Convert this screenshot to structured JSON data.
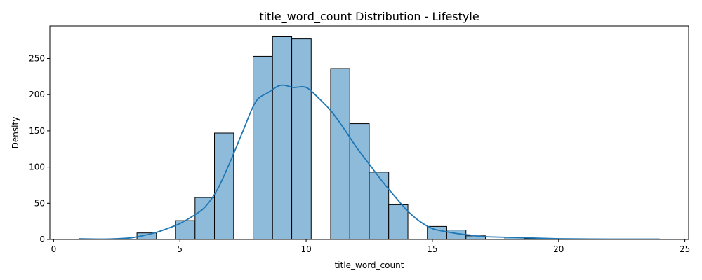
{
  "chart_data": {
    "type": "bar",
    "title": "title_word_count Distribution - Lifestyle",
    "xlabel": "title_word_count",
    "ylabel": "Density",
    "xlim": [
      -0.15,
      25.15
    ],
    "ylim": [
      0,
      295
    ],
    "xticks": [
      0,
      5,
      10,
      15,
      20,
      25
    ],
    "yticks": [
      0,
      50,
      100,
      150,
      200,
      250
    ],
    "bar_color": "#8fbbdb",
    "line_color": "#1f77b4",
    "bins": [
      {
        "x0": 1.0,
        "x1": 1.77,
        "value": 0
      },
      {
        "x0": 1.77,
        "x1": 2.53,
        "value": 0
      },
      {
        "x0": 2.53,
        "x1": 3.3,
        "value": 0
      },
      {
        "x0": 3.3,
        "x1": 4.07,
        "value": 9
      },
      {
        "x0": 4.07,
        "x1": 4.83,
        "value": 0
      },
      {
        "x0": 4.83,
        "x1": 5.6,
        "value": 26
      },
      {
        "x0": 5.6,
        "x1": 6.37,
        "value": 58
      },
      {
        "x0": 6.37,
        "x1": 7.13,
        "value": 147
      },
      {
        "x0": 7.13,
        "x1": 7.9,
        "value": 0
      },
      {
        "x0": 7.9,
        "x1": 8.67,
        "value": 253
      },
      {
        "x0": 8.67,
        "x1": 9.43,
        "value": 280
      },
      {
        "x0": 9.43,
        "x1": 10.2,
        "value": 277
      },
      {
        "x0": 10.2,
        "x1": 10.97,
        "value": 0
      },
      {
        "x0": 10.97,
        "x1": 11.73,
        "value": 236
      },
      {
        "x0": 11.73,
        "x1": 12.5,
        "value": 160
      },
      {
        "x0": 12.5,
        "x1": 13.27,
        "value": 93
      },
      {
        "x0": 13.27,
        "x1": 14.03,
        "value": 48
      },
      {
        "x0": 14.03,
        "x1": 14.8,
        "value": 0
      },
      {
        "x0": 14.8,
        "x1": 15.57,
        "value": 18
      },
      {
        "x0": 15.57,
        "x1": 16.33,
        "value": 13
      },
      {
        "x0": 16.33,
        "x1": 17.1,
        "value": 5
      },
      {
        "x0": 17.1,
        "x1": 17.87,
        "value": 0
      },
      {
        "x0": 17.87,
        "x1": 18.63,
        "value": 3
      },
      {
        "x0": 18.63,
        "x1": 19.4,
        "value": 1
      },
      {
        "x0": 19.4,
        "x1": 20.17,
        "value": 0
      },
      {
        "x0": 20.17,
        "x1": 20.93,
        "value": 0
      },
      {
        "x0": 20.93,
        "x1": 21.7,
        "value": 0
      },
      {
        "x0": 21.7,
        "x1": 22.47,
        "value": 0
      },
      {
        "x0": 22.47,
        "x1": 23.23,
        "value": 0
      },
      {
        "x0": 23.23,
        "x1": 24.0,
        "value": 0
      }
    ],
    "kde": {
      "x": [
        1,
        2,
        3,
        3.5,
        4,
        4.5,
        5,
        5.5,
        6,
        6.5,
        7,
        7.5,
        8,
        8.5,
        9,
        9.5,
        10,
        10.5,
        11,
        11.5,
        12,
        12.5,
        13,
        13.5,
        14,
        14.5,
        15,
        15.5,
        16,
        16.5,
        17,
        18,
        19,
        20,
        22,
        24
      ],
      "y": [
        1,
        0.5,
        2,
        5,
        9,
        15,
        22,
        32,
        45,
        70,
        108,
        150,
        190,
        203,
        213,
        210,
        210,
        195,
        177,
        153,
        127,
        104,
        81,
        60,
        40,
        25,
        15,
        11,
        8,
        6,
        4,
        3,
        2,
        1,
        0.5,
        0.5
      ]
    }
  }
}
